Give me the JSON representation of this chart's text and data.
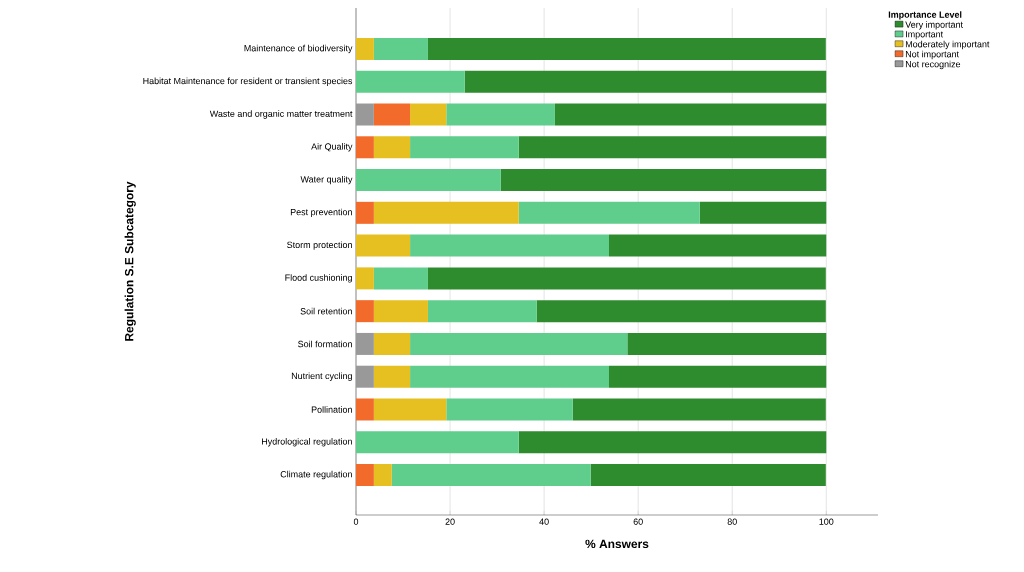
{
  "chart_data": {
    "type": "bar",
    "orientation": "horizontal",
    "stacked": true,
    "xlabel": "% Answers",
    "ylabel": "Regulation S.E Subcategory",
    "legend_title": "Importance Level",
    "categories": [
      "Maintenance of biodiversity",
      "Habitat Maintenance for resident or transient species",
      "Waste and organic matter treatment",
      "Air Quality",
      "Water quality",
      "Pest prevention",
      "Storm protection",
      "Flood cushioning",
      "Soil retention",
      "Soil formation",
      "Nutrient cycling",
      "Pollination",
      "Hydrological regulation",
      "Climate regulation"
    ],
    "series": [
      {
        "name": "Not recognize",
        "color": "#999999",
        "values": [
          null,
          null,
          3.8,
          null,
          null,
          null,
          null,
          null,
          null,
          3.8,
          3.8,
          null,
          null,
          null
        ]
      },
      {
        "name": "Not important",
        "color": "#f26b2b",
        "values": [
          null,
          null,
          7.7,
          3.8,
          null,
          3.8,
          null,
          null,
          3.8,
          null,
          null,
          3.8,
          null,
          3.8
        ]
      },
      {
        "name": "Moderately important",
        "color": "#e6bf20",
        "values": [
          3.8,
          null,
          7.7,
          7.7,
          null,
          30.8,
          11.5,
          3.8,
          11.5,
          7.7,
          7.7,
          15.4,
          null,
          3.8
        ]
      },
      {
        "name": "Important",
        "color": "#5fcd8b",
        "values": [
          11.5,
          23.1,
          23.1,
          23.1,
          30.8,
          38.5,
          42.3,
          11.5,
          23.1,
          46.2,
          42.3,
          26.9,
          34.6,
          42.3
        ]
      },
      {
        "name": "Very important",
        "color": "#2e8b2e",
        "values": [
          84.6,
          76.9,
          57.7,
          65.4,
          69.2,
          26.9,
          46.2,
          84.6,
          61.5,
          42.3,
          46.2,
          53.8,
          65.4,
          50.0
        ]
      }
    ],
    "xlim": [
      0,
      111
    ],
    "xticks": [
      0,
      20,
      40,
      60,
      80,
      100
    ],
    "grid": "x",
    "legend": "top right"
  }
}
